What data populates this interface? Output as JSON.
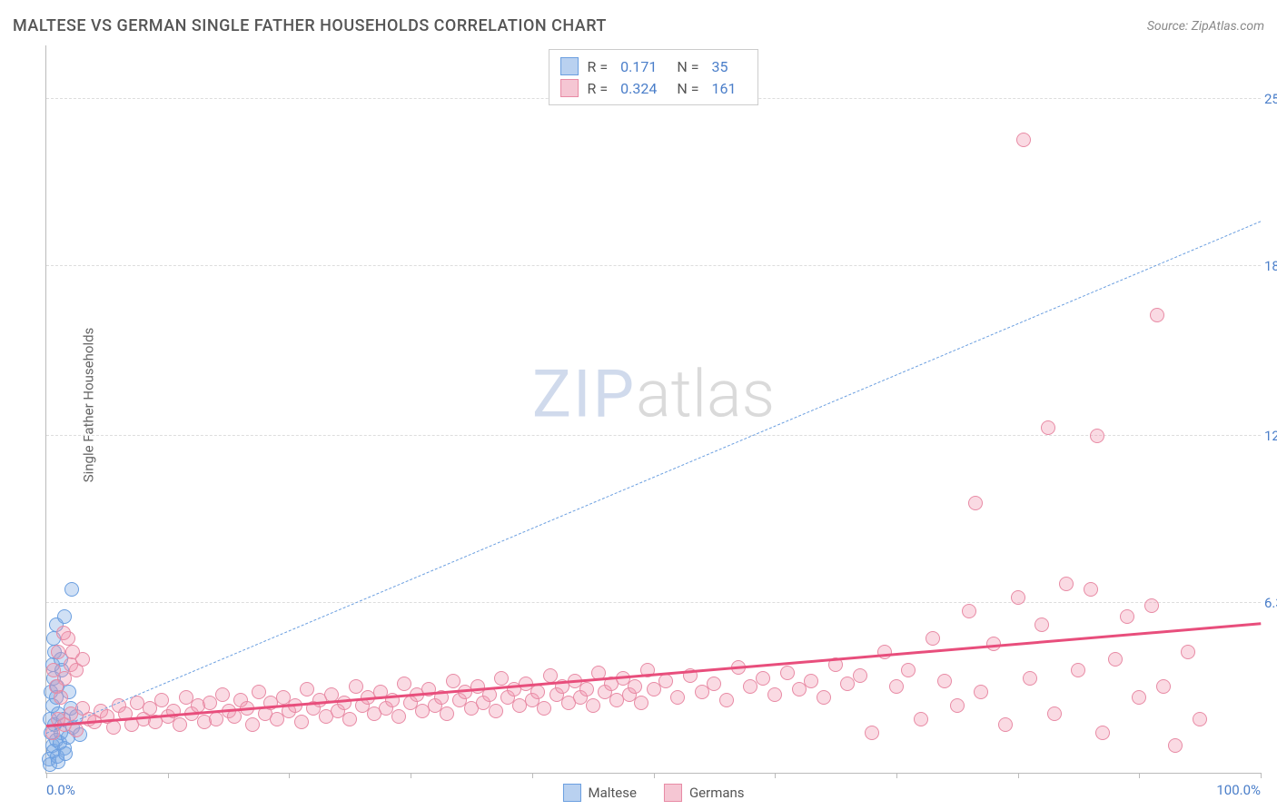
{
  "title": "MALTESE VS GERMAN SINGLE FATHER HOUSEHOLDS CORRELATION CHART",
  "source": "Source: ZipAtlas.com",
  "ylabel": "Single Father Households",
  "watermark": {
    "part1": "ZIP",
    "part2": "atlas"
  },
  "chart": {
    "type": "scatter",
    "background_color": "#ffffff",
    "grid_color": "#dddddd",
    "axis_color": "#bbbbbb",
    "xlim": [
      0,
      100
    ],
    "ylim": [
      0,
      27
    ],
    "x_ticks": [
      0,
      10,
      20,
      30,
      40,
      50,
      60,
      70,
      80,
      90,
      100
    ],
    "x_tick_labels": {
      "0": "0.0%",
      "100": "100.0%"
    },
    "y_ticks": [
      6.3,
      12.5,
      18.8,
      25.0
    ],
    "y_tick_labels": [
      "6.3%",
      "12.5%",
      "18.8%",
      "25.0%"
    ],
    "x_tick_label_color": "#4a7ec9",
    "y_tick_label_color": "#4a7ec9",
    "marker_radius": 8,
    "marker_stroke_width": 1.5,
    "series": [
      {
        "name": "Maltese",
        "fill": "rgba(120,165,225,0.35)",
        "stroke": "#6b9fe0",
        "swatch_fill": "#b9d1f0",
        "swatch_stroke": "#6b9fe0",
        "r": "0.171",
        "n": "35",
        "trend": {
          "x1": 0,
          "y1": 1.5,
          "x2": 100,
          "y2": 20.5,
          "style": "dashed",
          "color": "#6b9fe0",
          "width": 1.5
        },
        "points": [
          [
            0.2,
            0.5
          ],
          [
            0.3,
            0.3
          ],
          [
            0.5,
            1.0
          ],
          [
            0.4,
            1.5
          ],
          [
            0.6,
            0.8
          ],
          [
            0.3,
            2.0
          ],
          [
            0.8,
            1.2
          ],
          [
            0.5,
            2.5
          ],
          [
            0.9,
            0.6
          ],
          [
            0.7,
            1.8
          ],
          [
            1.0,
            2.2
          ],
          [
            0.4,
            3.0
          ],
          [
            1.2,
            1.5
          ],
          [
            0.6,
            3.5
          ],
          [
            1.5,
            0.9
          ],
          [
            0.8,
            2.8
          ],
          [
            1.1,
            1.1
          ],
          [
            0.9,
            3.2
          ],
          [
            1.4,
            2.0
          ],
          [
            0.5,
            4.0
          ],
          [
            1.8,
            1.3
          ],
          [
            1.0,
            0.4
          ],
          [
            0.7,
            4.5
          ],
          [
            2.0,
            2.4
          ],
          [
            1.3,
            3.8
          ],
          [
            0.6,
            5.0
          ],
          [
            2.2,
            1.7
          ],
          [
            1.6,
            0.7
          ],
          [
            0.8,
            5.5
          ],
          [
            2.5,
            2.1
          ],
          [
            1.9,
            3.0
          ],
          [
            1.2,
            4.2
          ],
          [
            2.8,
            1.4
          ],
          [
            1.5,
            5.8
          ],
          [
            2.1,
            6.8
          ]
        ]
      },
      {
        "name": "Germans",
        "fill": "rgba(240,150,175,0.35)",
        "stroke": "#e88ba5",
        "swatch_fill": "#f5c6d3",
        "swatch_stroke": "#e88ba5",
        "r": "0.324",
        "n": "161",
        "trend": {
          "x1": 0,
          "y1": 1.8,
          "x2": 100,
          "y2": 5.6,
          "style": "solid",
          "color": "#e84e7c",
          "width": 2.5
        },
        "points": [
          [
            0.5,
            1.5
          ],
          [
            1.0,
            2.0
          ],
          [
            1.5,
            1.8
          ],
          [
            2.0,
            2.2
          ],
          [
            2.5,
            1.6
          ],
          [
            3.0,
            2.4
          ],
          [
            3.5,
            2.0
          ],
          [
            4.0,
            1.9
          ],
          [
            4.5,
            2.3
          ],
          [
            5.0,
            2.1
          ],
          [
            5.5,
            1.7
          ],
          [
            6.0,
            2.5
          ],
          [
            6.5,
            2.2
          ],
          [
            7.0,
            1.8
          ],
          [
            7.5,
            2.6
          ],
          [
            8.0,
            2.0
          ],
          [
            8.5,
            2.4
          ],
          [
            9.0,
            1.9
          ],
          [
            9.5,
            2.7
          ],
          [
            10.0,
            2.1
          ],
          [
            10.5,
            2.3
          ],
          [
            11.0,
            1.8
          ],
          [
            11.5,
            2.8
          ],
          [
            12.0,
            2.2
          ],
          [
            12.5,
            2.5
          ],
          [
            13.0,
            1.9
          ],
          [
            13.5,
            2.6
          ],
          [
            14.0,
            2.0
          ],
          [
            14.5,
            2.9
          ],
          [
            15.0,
            2.3
          ],
          [
            15.5,
            2.1
          ],
          [
            16.0,
            2.7
          ],
          [
            16.5,
            2.4
          ],
          [
            17.0,
            1.8
          ],
          [
            17.5,
            3.0
          ],
          [
            18.0,
            2.2
          ],
          [
            18.5,
            2.6
          ],
          [
            19.0,
            2.0
          ],
          [
            19.5,
            2.8
          ],
          [
            20.0,
            2.3
          ],
          [
            20.5,
            2.5
          ],
          [
            21.0,
            1.9
          ],
          [
            21.5,
            3.1
          ],
          [
            22.0,
            2.4
          ],
          [
            22.5,
            2.7
          ],
          [
            23.0,
            2.1
          ],
          [
            23.5,
            2.9
          ],
          [
            24.0,
            2.3
          ],
          [
            24.5,
            2.6
          ],
          [
            25.0,
            2.0
          ],
          [
            25.5,
            3.2
          ],
          [
            26.0,
            2.5
          ],
          [
            26.5,
            2.8
          ],
          [
            27.0,
            2.2
          ],
          [
            27.5,
            3.0
          ],
          [
            28.0,
            2.4
          ],
          [
            28.5,
            2.7
          ],
          [
            29.0,
            2.1
          ],
          [
            29.5,
            3.3
          ],
          [
            30.0,
            2.6
          ],
          [
            30.5,
            2.9
          ],
          [
            31.0,
            2.3
          ],
          [
            31.5,
            3.1
          ],
          [
            32.0,
            2.5
          ],
          [
            32.5,
            2.8
          ],
          [
            33.0,
            2.2
          ],
          [
            33.5,
            3.4
          ],
          [
            34.0,
            2.7
          ],
          [
            34.5,
            3.0
          ],
          [
            35.0,
            2.4
          ],
          [
            35.5,
            3.2
          ],
          [
            36.0,
            2.6
          ],
          [
            36.5,
            2.9
          ],
          [
            37.0,
            2.3
          ],
          [
            37.5,
            3.5
          ],
          [
            38.0,
            2.8
          ],
          [
            38.5,
            3.1
          ],
          [
            39.0,
            2.5
          ],
          [
            39.5,
            3.3
          ],
          [
            40.0,
            2.7
          ],
          [
            40.5,
            3.0
          ],
          [
            41.0,
            2.4
          ],
          [
            41.5,
            3.6
          ],
          [
            42.0,
            2.9
          ],
          [
            42.5,
            3.2
          ],
          [
            43.0,
            2.6
          ],
          [
            43.5,
            3.4
          ],
          [
            44.0,
            2.8
          ],
          [
            44.5,
            3.1
          ],
          [
            45.0,
            2.5
          ],
          [
            45.5,
            3.7
          ],
          [
            46.0,
            3.0
          ],
          [
            46.5,
            3.3
          ],
          [
            47.0,
            2.7
          ],
          [
            47.5,
            3.5
          ],
          [
            48.0,
            2.9
          ],
          [
            48.5,
            3.2
          ],
          [
            49.0,
            2.6
          ],
          [
            49.5,
            3.8
          ],
          [
            50.0,
            3.1
          ],
          [
            51.0,
            3.4
          ],
          [
            52.0,
            2.8
          ],
          [
            53.0,
            3.6
          ],
          [
            54.0,
            3.0
          ],
          [
            55.0,
            3.3
          ],
          [
            56.0,
            2.7
          ],
          [
            57.0,
            3.9
          ],
          [
            58.0,
            3.2
          ],
          [
            59.0,
            3.5
          ],
          [
            60.0,
            2.9
          ],
          [
            61.0,
            3.7
          ],
          [
            62.0,
            3.1
          ],
          [
            63.0,
            3.4
          ],
          [
            64.0,
            2.8
          ],
          [
            65.0,
            4.0
          ],
          [
            66.0,
            3.3
          ],
          [
            67.0,
            3.6
          ],
          [
            68.0,
            1.5
          ],
          [
            69.0,
            4.5
          ],
          [
            70.0,
            3.2
          ],
          [
            71.0,
            3.8
          ],
          [
            72.0,
            2.0
          ],
          [
            73.0,
            5.0
          ],
          [
            74.0,
            3.4
          ],
          [
            75.0,
            2.5
          ],
          [
            76.0,
            6.0
          ],
          [
            77.0,
            3.0
          ],
          [
            78.0,
            4.8
          ],
          [
            79.0,
            1.8
          ],
          [
            80.0,
            6.5
          ],
          [
            76.5,
            10.0
          ],
          [
            81.0,
            3.5
          ],
          [
            82.0,
            5.5
          ],
          [
            83.0,
            2.2
          ],
          [
            84.0,
            7.0
          ],
          [
            85.0,
            3.8
          ],
          [
            86.0,
            6.8
          ],
          [
            82.5,
            12.8
          ],
          [
            87.0,
            1.5
          ],
          [
            88.0,
            4.2
          ],
          [
            86.5,
            12.5
          ],
          [
            89.0,
            5.8
          ],
          [
            90.0,
            2.8
          ],
          [
            91.0,
            6.2
          ],
          [
            92.0,
            3.2
          ],
          [
            93.0,
            1.0
          ],
          [
            94.0,
            4.5
          ],
          [
            95.0,
            2.0
          ],
          [
            91.5,
            17.0
          ],
          [
            80.5,
            23.5
          ],
          [
            1.5,
            3.5
          ],
          [
            2.0,
            4.0
          ],
          [
            1.0,
            4.5
          ],
          [
            2.5,
            3.8
          ],
          [
            3.0,
            4.2
          ],
          [
            1.8,
            5.0
          ],
          [
            0.8,
            3.2
          ],
          [
            1.2,
            2.8
          ],
          [
            0.6,
            3.8
          ],
          [
            2.2,
            4.5
          ],
          [
            1.4,
            5.2
          ]
        ]
      }
    ]
  },
  "legend_top": {
    "r_label": "R =",
    "n_label": "N ="
  },
  "legend_bottom_labels": [
    "Maltese",
    "Germans"
  ]
}
